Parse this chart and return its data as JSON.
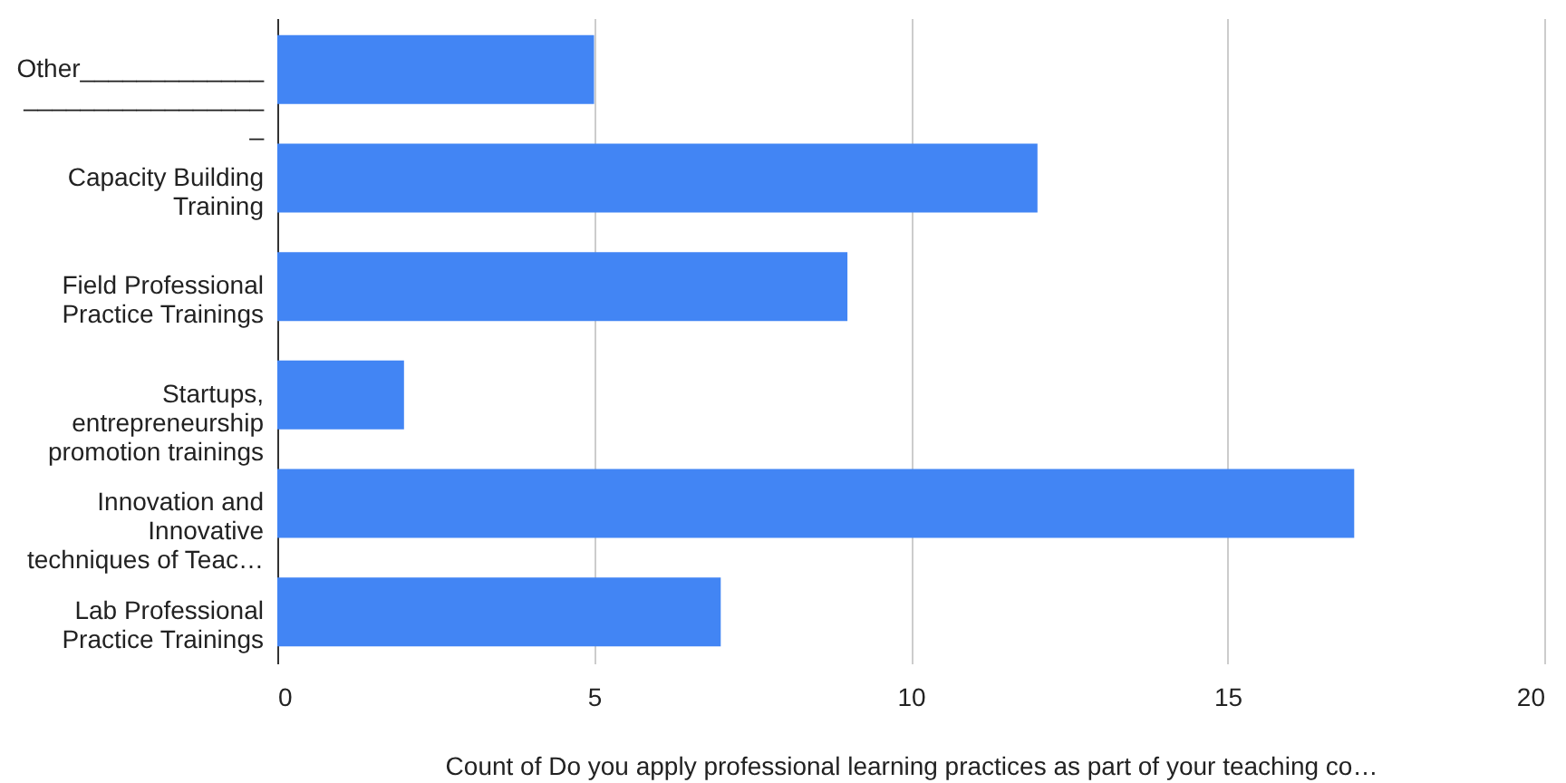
{
  "chart_data": {
    "type": "bar",
    "orientation": "horizontal",
    "categories": [
      "Other_____________\n_________________\n_",
      "Capacity Building\nTraining",
      "Field Professional\nPractice Trainings",
      "Startups,\nentrepreneurship\npromotion trainings",
      "Innovation and\nInnovative\ntechniques of Teac…",
      "Lab Professional\nPractice Trainings"
    ],
    "values": [
      5,
      12,
      9,
      2,
      17,
      7
    ],
    "color": "#4285f4",
    "xlabel": "Count of Do you apply professional learning practices as part of your teaching co…",
    "xlim": [
      0,
      20
    ],
    "xticks": [
      0,
      5,
      10,
      15,
      20
    ],
    "grid": "x"
  }
}
